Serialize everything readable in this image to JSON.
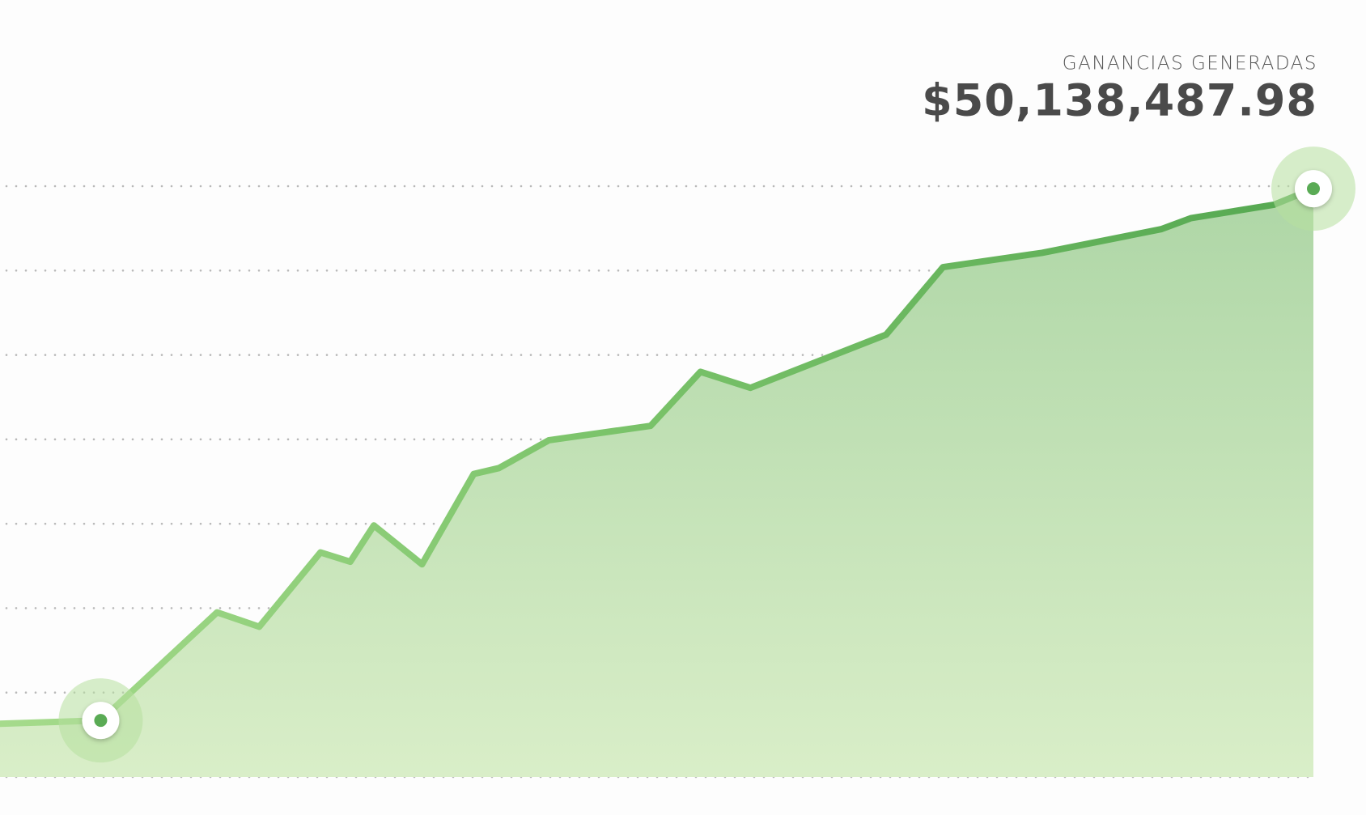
{
  "chart_data": {
    "type": "area",
    "title": "GANANCIAS GENERADAS",
    "subtitle": "$50,138,487.98",
    "x": [
      0,
      115,
      248,
      296,
      366,
      400,
      427,
      482,
      541,
      570,
      627,
      743,
      800,
      857,
      1012,
      1077,
      1190,
      1326,
      1360,
      1455,
      1500
    ],
    "series": [
      {
        "name": "ganancias",
        "color": "#5aab55",
        "values": [
          0.63,
          0.67,
          1.95,
          1.78,
          2.66,
          2.55,
          2.98,
          2.52,
          3.59,
          3.66,
          3.99,
          4.16,
          4.8,
          4.61,
          5.24,
          6.04,
          6.21,
          6.49,
          6.62,
          6.78,
          6.97
        ]
      }
    ],
    "xlim": [
      0,
      1500
    ],
    "ylim": [
      0,
      7
    ],
    "yticks": [
      0,
      1,
      2,
      3,
      4,
      5,
      6,
      7
    ],
    "grid": true,
    "highlight": [
      1,
      20
    ]
  }
}
